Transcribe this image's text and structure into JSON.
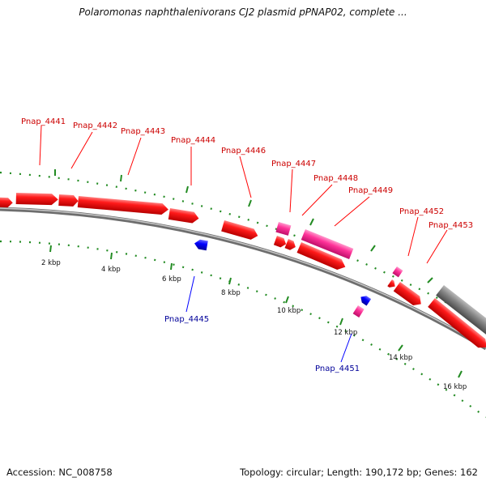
{
  "title": "Polaromonas naphthalenivorans CJ2 plasmid pPNAP02, complete ...",
  "footer": {
    "accession": "Accession: NC_008758",
    "summary": "Topology: circular; Length: 190,172 bp; Genes: 162"
  },
  "colors": {
    "gene_forward": "#ff0000",
    "gene_reverse": "#0000ff",
    "gene_pink": "#ff3399",
    "label_forward": "#cc0000",
    "label_reverse": "#000099",
    "tick": "#228b22",
    "backbone": "#808080",
    "dark_feature": "#555555"
  },
  "kbp_labels": [
    "2 kbp",
    "4 kbp",
    "6 kbp",
    "8 kbp",
    "10 kbp",
    "12 kbp",
    "14 kbp",
    "16 kbp"
  ],
  "forward_labels": [
    "Pnap_4441",
    "Pnap_4442",
    "Pnap_4443",
    "Pnap_4444",
    "Pnap_4446",
    "Pnap_4447",
    "Pnap_4448",
    "Pnap_4449",
    "Pnap_4452",
    "Pnap_4453"
  ],
  "reverse_labels": [
    "Pnap_4445",
    "Pnap_4451"
  ]
}
